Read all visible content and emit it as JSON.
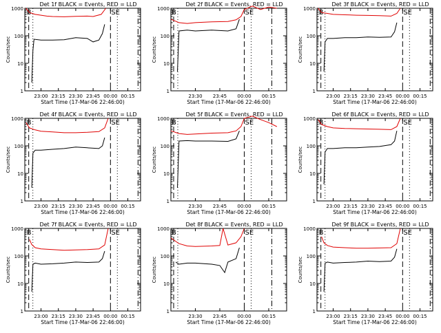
{
  "colors": {
    "background": "#ffffff",
    "events": "#000000",
    "lld": "#e00000"
  },
  "shared": {
    "xlabel": "Start Time (17-Mar-06 22:46:00)",
    "ylabel": "Counts/sec",
    "x_ticks": [
      "23:00",
      "23:15",
      "23:30",
      "23:45",
      "00:00",
      "00:15"
    ],
    "y_ticks": [
      "1",
      "10",
      "100",
      "1000"
    ]
  },
  "chart_data": [
    {
      "type": "line",
      "title": "Det 1f BLACK = Events, RED = LLD",
      "markers": [
        {
          "text": "B",
          "x": "22:47"
        },
        {
          "text": "SE",
          "x": "00:00"
        }
      ],
      "xlim": [
        "22:46",
        "00:26"
      ],
      "ylim": [
        1,
        1000
      ],
      "yscale": "log",
      "x_ticks": [
        "23:00",
        "23:15",
        "23:30",
        "23:45",
        "00:00",
        "00:15"
      ],
      "series": [
        {
          "color": "red",
          "x": [
            "22:47",
            "22:50",
            "22:55",
            "23:00",
            "23:05",
            "23:10",
            "23:20",
            "23:30",
            "23:40",
            "23:45",
            "23:52",
            "23:56"
          ],
          "values": [
            1000,
            700,
            600,
            560,
            520,
            500,
            490,
            510,
            520,
            500,
            600,
            1000
          ]
        },
        {
          "color": "black",
          "x": [
            "22:52",
            "22:53",
            "22:54",
            "23:00",
            "23:10",
            "23:20",
            "23:30",
            "23:40",
            "23:45",
            "23:50",
            "23:53",
            "23:55"
          ],
          "values": [
            2,
            30,
            75,
            70,
            70,
            72,
            85,
            80,
            60,
            70,
            120,
            260
          ]
        }
      ]
    },
    {
      "type": "line",
      "title": "Det 2f BLACK = Events, RED = LLD",
      "markers": [
        {
          "text": "B",
          "x": "23:15"
        },
        {
          "text": "SE",
          "x": "00:00"
        }
      ],
      "xlim": [
        "23:15",
        "00:26"
      ],
      "ylim": [
        1,
        1000
      ],
      "yscale": "log",
      "x_ticks": [
        "23:30",
        "23:45",
        "00:00",
        "00:15"
      ],
      "series": [
        {
          "color": "red",
          "x": [
            "23:15",
            "23:20",
            "23:25",
            "23:30",
            "23:40",
            "23:50",
            "23:55",
            "23:58",
            "00:00",
            "00:05",
            "00:10",
            "00:15",
            "00:20"
          ],
          "values": [
            400,
            300,
            280,
            300,
            320,
            330,
            380,
            500,
            900,
            1200,
            900,
            1100,
            1000
          ]
        },
        {
          "color": "black",
          "x": [
            "23:19",
            "23:20",
            "23:25",
            "23:30",
            "23:40",
            "23:50",
            "23:55",
            "23:57"
          ],
          "values": [
            5,
            150,
            160,
            150,
            160,
            150,
            180,
            400
          ]
        }
      ]
    },
    {
      "type": "line",
      "title": "Det 3f BLACK = Events, RED = LLD",
      "markers": [
        {
          "text": "B",
          "x": "22:47"
        },
        {
          "text": "SE",
          "x": "00:00"
        }
      ],
      "xlim": [
        "22:46",
        "00:26"
      ],
      "ylim": [
        1,
        1000
      ],
      "yscale": "log",
      "x_ticks": [
        "23:00",
        "23:15",
        "23:30",
        "23:45",
        "00:00",
        "00:15"
      ],
      "series": [
        {
          "color": "red",
          "x": [
            "22:47",
            "22:50",
            "22:55",
            "23:00",
            "23:10",
            "23:20",
            "23:30",
            "23:40",
            "23:50",
            "23:55",
            "23:58"
          ],
          "values": [
            1000,
            700,
            650,
            600,
            580,
            560,
            550,
            540,
            520,
            650,
            1000
          ]
        },
        {
          "color": "black",
          "x": [
            "22:52",
            "22:53",
            "22:55",
            "23:00",
            "23:10",
            "23:20",
            "23:30",
            "23:40",
            "23:50",
            "23:53",
            "23:55"
          ],
          "values": [
            5,
            60,
            80,
            80,
            85,
            85,
            90,
            88,
            90,
            140,
            300
          ]
        }
      ]
    },
    {
      "type": "line",
      "title": "Det 4f BLACK = Events, RED = LLD",
      "markers": [
        {
          "text": "B",
          "x": "22:47"
        },
        {
          "text": "SE",
          "x": "00:00"
        }
      ],
      "xlim": [
        "22:46",
        "00:26"
      ],
      "ylim": [
        1,
        1000
      ],
      "yscale": "log",
      "x_ticks": [
        "23:00",
        "23:15",
        "23:30",
        "23:45",
        "00:00",
        "00:15"
      ],
      "series": [
        {
          "color": "red",
          "x": [
            "22:47",
            "22:50",
            "22:55",
            "23:00",
            "23:10",
            "23:20",
            "23:30",
            "23:40",
            "23:50",
            "23:55",
            "23:58"
          ],
          "values": [
            700,
            450,
            380,
            340,
            320,
            300,
            300,
            310,
            330,
            450,
            1000
          ]
        },
        {
          "color": "black",
          "x": [
            "22:52",
            "22:53",
            "22:55",
            "23:00",
            "23:10",
            "23:20",
            "23:30",
            "23:40",
            "23:50",
            "23:53",
            "23:55"
          ],
          "values": [
            3,
            55,
            70,
            70,
            75,
            80,
            90,
            85,
            80,
            100,
            200
          ]
        }
      ]
    },
    {
      "type": "line",
      "title": "Det 5f BLACK = Events, RED = LLD",
      "markers": [
        {
          "text": "B",
          "x": "23:15"
        },
        {
          "text": "SE",
          "x": "00:00"
        }
      ],
      "xlim": [
        "23:15",
        "00:26"
      ],
      "ylim": [
        1,
        1000
      ],
      "yscale": "log",
      "x_ticks": [
        "23:30",
        "23:45",
        "00:00",
        "00:15"
      ],
      "series": [
        {
          "color": "red",
          "x": [
            "23:15",
            "23:20",
            "23:25",
            "23:30",
            "23:40",
            "23:50",
            "23:55",
            "23:58",
            "00:00",
            "00:05",
            "00:10",
            "00:15",
            "00:20"
          ],
          "values": [
            350,
            280,
            260,
            270,
            290,
            300,
            350,
            500,
            1000,
            1200,
            900,
            700,
            500
          ]
        },
        {
          "color": "black",
          "x": [
            "23:19",
            "23:20",
            "23:25",
            "23:30",
            "23:40",
            "23:50",
            "23:55",
            "23:57"
          ],
          "values": [
            3,
            150,
            155,
            150,
            150,
            145,
            180,
            350
          ]
        }
      ]
    },
    {
      "type": "line",
      "title": "Det 6f BLACK = Events, RED = LLD",
      "markers": [
        {
          "text": "B",
          "x": "22:47"
        },
        {
          "text": "SE",
          "x": "00:00"
        }
      ],
      "xlim": [
        "22:46",
        "00:26"
      ],
      "ylim": [
        1,
        1000
      ],
      "yscale": "log",
      "x_ticks": [
        "23:00",
        "23:15",
        "23:30",
        "23:45",
        "00:00",
        "00:15"
      ],
      "series": [
        {
          "color": "red",
          "x": [
            "22:47",
            "22:50",
            "22:55",
            "23:00",
            "23:10",
            "23:20",
            "23:30",
            "23:40",
            "23:50",
            "23:55",
            "23:58"
          ],
          "values": [
            900,
            600,
            500,
            450,
            430,
            420,
            410,
            400,
            390,
            500,
            1000
          ]
        },
        {
          "color": "black",
          "x": [
            "22:52",
            "22:53",
            "22:55",
            "23:00",
            "23:10",
            "23:20",
            "23:30",
            "23:40",
            "23:50",
            "23:53",
            "23:55"
          ],
          "values": [
            4,
            60,
            80,
            80,
            85,
            85,
            90,
            95,
            110,
            150,
            350
          ]
        }
      ]
    },
    {
      "type": "line",
      "title": "Det 7f BLACK = Events, RED = LLD",
      "markers": [
        {
          "text": "B",
          "x": "22:47"
        },
        {
          "text": "SE",
          "x": "00:00"
        }
      ],
      "xlim": [
        "22:46",
        "00:26"
      ],
      "ylim": [
        1,
        1000
      ],
      "yscale": "log",
      "x_ticks": [
        "23:00",
        "23:15",
        "23:30",
        "23:45",
        "00:00",
        "00:15"
      ],
      "series": [
        {
          "color": "red",
          "x": [
            "22:50",
            "22:52",
            "22:55",
            "23:00",
            "23:10",
            "23:20",
            "23:30",
            "23:40",
            "23:50",
            "23:55",
            "23:58"
          ],
          "values": [
            400,
            260,
            200,
            180,
            170,
            160,
            165,
            170,
            180,
            250,
            1000
          ]
        },
        {
          "color": "black",
          "x": [
            "22:52",
            "22:53",
            "22:55",
            "23:00",
            "23:10",
            "23:20",
            "23:30",
            "23:40",
            "23:50",
            "23:53",
            "23:55"
          ],
          "values": [
            5,
            50,
            55,
            50,
            52,
            55,
            60,
            58,
            60,
            80,
            150
          ]
        }
      ]
    },
    {
      "type": "line",
      "title": "Det 8f BLACK = Events, RED = LLD",
      "markers": [
        {
          "text": "B",
          "x": "23:15"
        },
        {
          "text": "SE",
          "x": "00:00"
        }
      ],
      "xlim": [
        "23:15",
        "00:26"
      ],
      "ylim": [
        1,
        1000
      ],
      "yscale": "log",
      "x_ticks": [
        "23:30",
        "23:45",
        "00:00",
        "00:15"
      ],
      "series": [
        {
          "color": "red",
          "x": [
            "23:15",
            "23:20",
            "23:25",
            "23:30",
            "23:40",
            "23:45",
            "23:47",
            "23:50",
            "23:55",
            "23:58",
            "00:00"
          ],
          "values": [
            450,
            280,
            230,
            220,
            230,
            240,
            1000,
            250,
            300,
            500,
            1000
          ]
        },
        {
          "color": "black",
          "x": [
            "23:18",
            "23:20",
            "23:25",
            "23:30",
            "23:40",
            "23:45",
            "23:48",
            "23:50",
            "23:55",
            "23:57"
          ],
          "values": [
            60,
            50,
            55,
            55,
            50,
            45,
            25,
            60,
            80,
            200
          ]
        }
      ]
    },
    {
      "type": "line",
      "title": "Det 9f BLACK = Events, RED = LLD",
      "markers": [
        {
          "text": "B",
          "x": "22:47"
        },
        {
          "text": "SE",
          "x": "00:00"
        }
      ],
      "xlim": [
        "22:46",
        "00:26"
      ],
      "ylim": [
        1,
        1000
      ],
      "yscale": "log",
      "x_ticks": [
        "23:00",
        "23:15",
        "23:30",
        "23:45",
        "00:00",
        "00:15"
      ],
      "series": [
        {
          "color": "red",
          "x": [
            "22:50",
            "22:52",
            "22:55",
            "23:00",
            "23:10",
            "23:20",
            "23:30",
            "23:40",
            "23:50",
            "23:55",
            "23:58"
          ],
          "values": [
            500,
            300,
            240,
            210,
            200,
            190,
            190,
            195,
            200,
            280,
            1000
          ]
        },
        {
          "color": "black",
          "x": [
            "22:52",
            "22:53",
            "22:55",
            "23:00",
            "23:10",
            "23:20",
            "23:30",
            "23:40",
            "23:50",
            "23:53",
            "23:55"
          ],
          "values": [
            5,
            55,
            60,
            55,
            58,
            60,
            65,
            62,
            65,
            90,
            180
          ]
        }
      ]
    }
  ]
}
